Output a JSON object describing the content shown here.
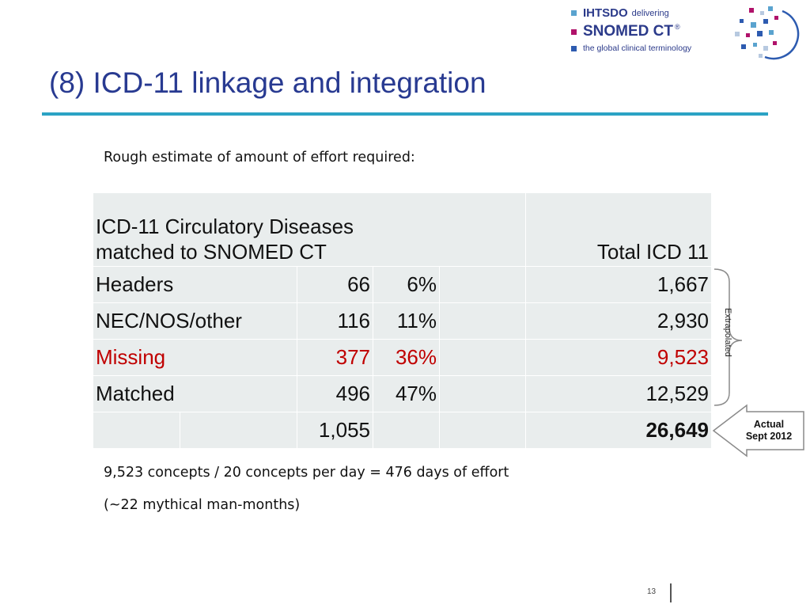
{
  "logo": {
    "line1_a": "IHTSDO",
    "line1_b": "delivering",
    "line2": "SNOMED CT",
    "line2_mark": "®",
    "line3": "the global clinical terminology"
  },
  "title": "(8) ICD-11 linkage and integration",
  "intro": "Rough estimate of amount of effort required:",
  "table": {
    "header_left_line1": "ICD-11 Circulatory Diseases",
    "header_left_line2": "matched to SNOMED CT",
    "header_right": "Total ICD 11",
    "rows": [
      {
        "label": "Headers",
        "count": "66",
        "pct": "6%",
        "total": "1,667"
      },
      {
        "label": "NEC/NOS/other",
        "count": "116",
        "pct": "11%",
        "total": "2,930"
      },
      {
        "label": "Missing",
        "count": "377",
        "pct": "36%",
        "total": "9,523"
      },
      {
        "label": "Matched",
        "count": "496",
        "pct": "47%",
        "total": "12,529"
      }
    ],
    "totals": {
      "count": "1,055",
      "total": "26,649"
    }
  },
  "brace_label": "Extrapolated",
  "arrow_label_line1": "Actual",
  "arrow_label_line2": "Sept 2012",
  "calc_line": "9,523 concepts / 20 concepts per day = 476 days of effort",
  "months_line": "(~22 mythical man-months)",
  "page_number": "13",
  "colors": {
    "title": "#283a91",
    "rule": "#2ba3c4",
    "missing": "#c00000",
    "cell_bg": "#e9eded"
  }
}
